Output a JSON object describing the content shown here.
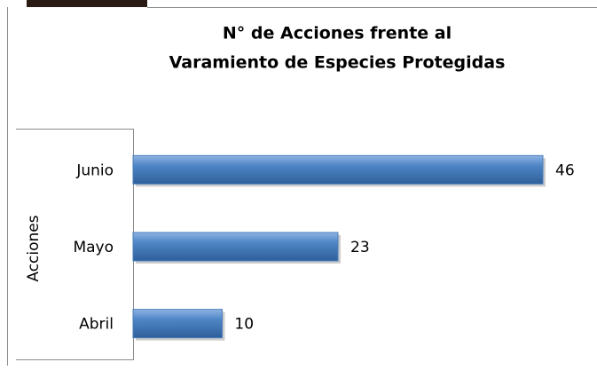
{
  "chart_data": {
    "type": "bar",
    "orientation": "horizontal",
    "title_lines": [
      "N° de Acciones frente  al",
      "Varamiento de Especies Protegidas"
    ],
    "y_label": "Acciones",
    "categories": [
      "Junio",
      "Mayo",
      "Abril"
    ],
    "values": [
      46,
      23,
      10
    ],
    "color": "#4a7ebb"
  }
}
